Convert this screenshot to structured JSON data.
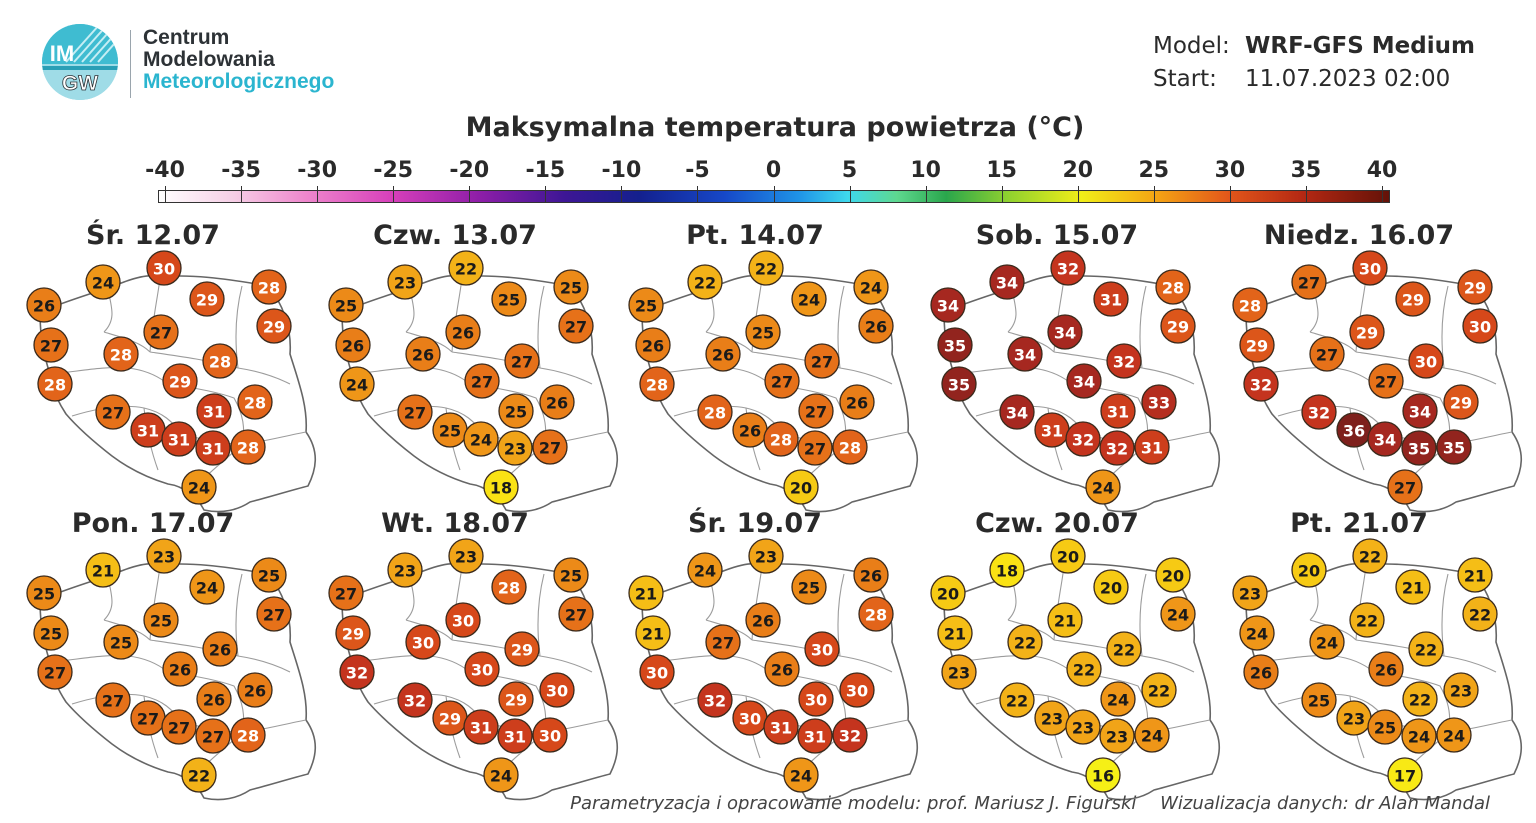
{
  "header": {
    "logo_text_top": "IM",
    "logo_text_bottom": "GW",
    "org_line1": "Centrum",
    "org_line2": "Modelowania",
    "org_line3": "Meteorologicznego",
    "model_label": "Model:",
    "model_value": "WRF-GFS Medium",
    "start_label": "Start:",
    "start_value": "11.07.2023 02:00"
  },
  "title": "Maksymalna temperatura powietrza (°C)",
  "colorbar": {
    "ticks": [
      "-40",
      "-35",
      "-30",
      "-25",
      "-20",
      "-15",
      "-10",
      "-5",
      "0",
      "5",
      "10",
      "15",
      "20",
      "25",
      "30",
      "35",
      "40"
    ],
    "min": -40,
    "max": 40
  },
  "panels": [
    {
      "date": "Śr. 12.07",
      "temps": [
        24,
        30,
        26,
        29,
        28,
        27,
        29,
        27,
        28,
        28,
        29,
        28,
        28,
        31,
        27,
        31,
        31,
        31,
        28,
        24
      ]
    },
    {
      "date": "Czw. 13.07",
      "temps": [
        23,
        22,
        25,
        25,
        25,
        26,
        27,
        26,
        26,
        27,
        27,
        26,
        24,
        25,
        27,
        25,
        24,
        23,
        27,
        18
      ]
    },
    {
      "date": "Pt. 14.07",
      "temps": [
        22,
        22,
        25,
        24,
        24,
        25,
        26,
        26,
        26,
        27,
        27,
        26,
        28,
        27,
        28,
        26,
        28,
        27,
        28,
        20
      ]
    },
    {
      "date": "Sob. 15.07",
      "temps": [
        34,
        32,
        34,
        31,
        28,
        34,
        29,
        35,
        34,
        32,
        34,
        33,
        35,
        31,
        34,
        31,
        32,
        32,
        31,
        24
      ]
    },
    {
      "date": "Niedz. 16.07",
      "temps": [
        27,
        30,
        28,
        29,
        29,
        29,
        30,
        29,
        27,
        30,
        27,
        29,
        32,
        34,
        32,
        36,
        34,
        35,
        35,
        27
      ]
    },
    {
      "date": "Pon. 17.07",
      "temps": [
        21,
        23,
        25,
        24,
        25,
        25,
        27,
        25,
        25,
        26,
        26,
        26,
        27,
        26,
        27,
        27,
        27,
        27,
        28,
        22
      ]
    },
    {
      "date": "Wt. 18.07",
      "temps": [
        23,
        23,
        27,
        28,
        25,
        30,
        27,
        29,
        30,
        29,
        30,
        30,
        32,
        29,
        32,
        29,
        31,
        31,
        30,
        24
      ]
    },
    {
      "date": "Śr. 19.07",
      "temps": [
        24,
        23,
        21,
        25,
        26,
        26,
        28,
        21,
        27,
        30,
        26,
        30,
        30,
        30,
        32,
        30,
        31,
        31,
        32,
        24
      ]
    },
    {
      "date": "Czw. 20.07",
      "temps": [
        18,
        20,
        20,
        20,
        20,
        21,
        24,
        21,
        22,
        22,
        22,
        22,
        23,
        24,
        22,
        23,
        23,
        23,
        24,
        16
      ]
    },
    {
      "date": "Pt. 21.07",
      "temps": [
        20,
        22,
        23,
        21,
        21,
        22,
        22,
        24,
        24,
        22,
        26,
        23,
        26,
        22,
        25,
        23,
        25,
        24,
        24,
        17
      ]
    }
  ],
  "credits": {
    "model": "Parametryzacja i opracowanie modelu: prof. Mariusz J. Figurski",
    "viz": "Wizualizacja danych: dr Alan Mandal"
  },
  "colors": {
    "brand_cyan": "#2bb5cf",
    "brand_dark": "#2d3236"
  }
}
